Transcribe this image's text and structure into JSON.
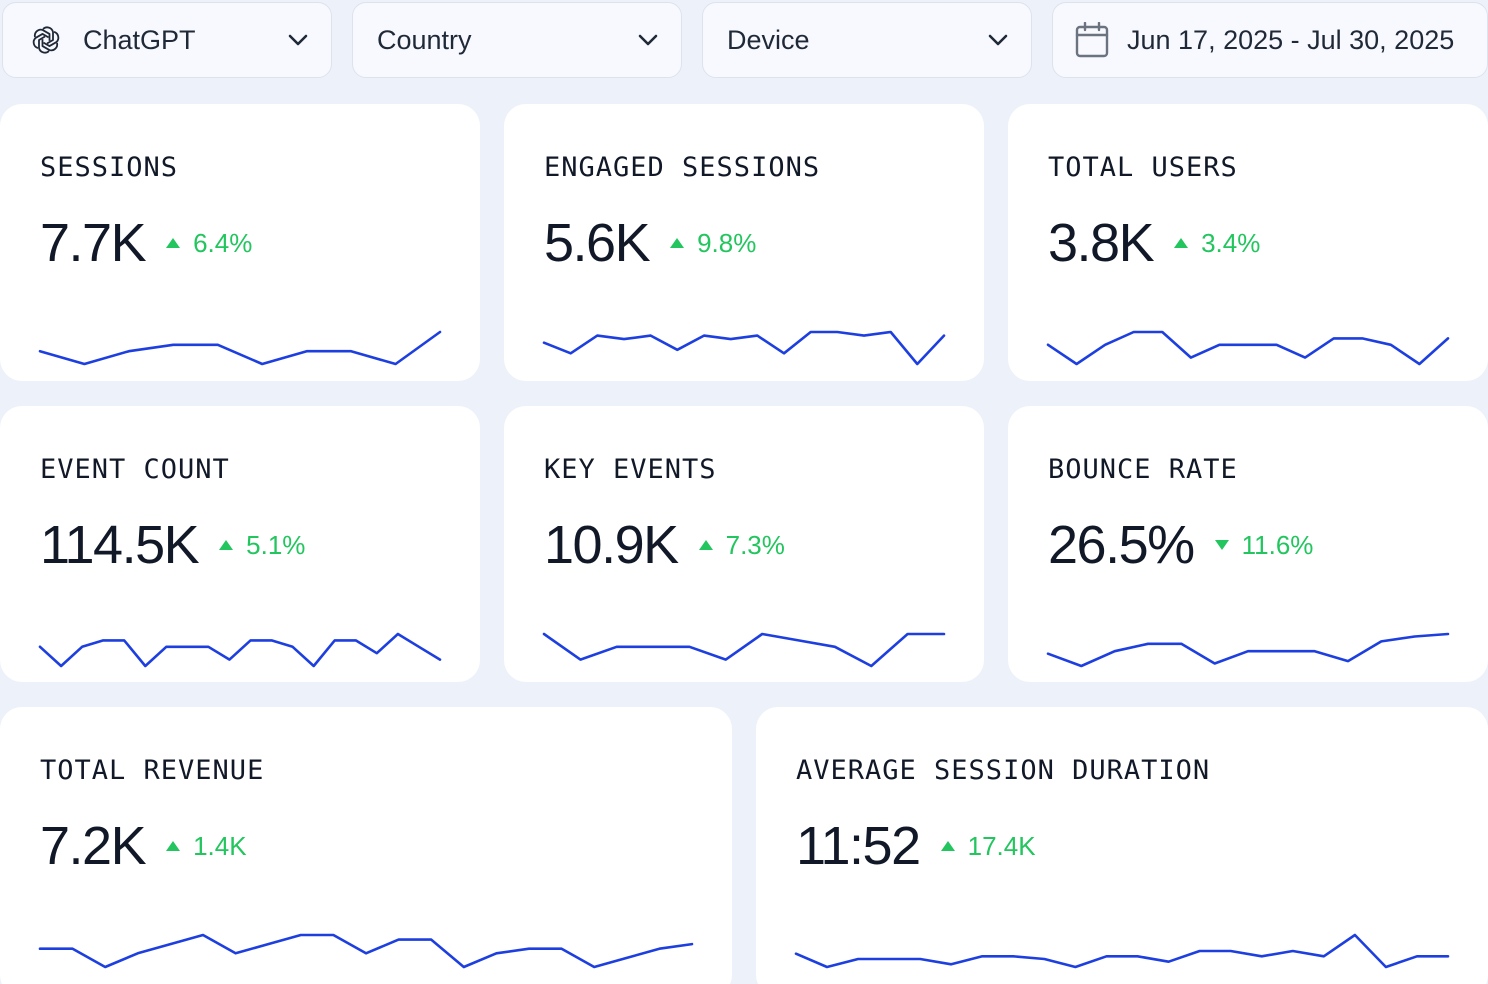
{
  "filters": {
    "source": {
      "label": "ChatGPT",
      "icon": "chatgpt-logo-icon"
    },
    "country": {
      "label": "Country"
    },
    "device": {
      "label": "Device"
    },
    "date_range": {
      "label": "Jun 17, 2025 - Jul 30, 2025",
      "icon": "calendar-icon"
    }
  },
  "colors": {
    "accent_line": "#1d3fe0",
    "positive": "#22c55e",
    "card_bg": "#ffffff",
    "page_bg": "#edf1f9"
  },
  "metrics": [
    {
      "id": "sessions",
      "title": "SESSIONS",
      "value": "7.7K",
      "delta": "6.4%",
      "direction": "up",
      "trend": [
        7.8,
        7.6,
        7.8,
        7.9,
        7.9,
        7.6,
        7.8,
        7.8,
        7.6,
        8.1
      ]
    },
    {
      "id": "engaged-sessions",
      "title": "ENGAGED SESSIONS",
      "value": "5.6K",
      "delta": "9.8%",
      "direction": "up",
      "trend": [
        5.9,
        5.6,
        6.1,
        6.0,
        6.1,
        5.7,
        6.1,
        6.0,
        6.1,
        5.6,
        6.2,
        6.2,
        6.1,
        6.2,
        5.3,
        6.1
      ]
    },
    {
      "id": "total-users",
      "title": "TOTAL USERS",
      "value": "3.8K",
      "delta": "3.4%",
      "direction": "up",
      "trend": [
        3.9,
        3.6,
        3.9,
        4.1,
        4.1,
        3.7,
        3.9,
        3.9,
        3.9,
        3.7,
        4.0,
        4.0,
        3.9,
        3.6,
        4.0
      ]
    },
    {
      "id": "event-count",
      "title": "EVENT COUNT",
      "value": "114.5K",
      "delta": "5.1%",
      "direction": "up",
      "trend": [
        115,
        112,
        115,
        116,
        116,
        112,
        115,
        115,
        115,
        113,
        116,
        116,
        115,
        112,
        116,
        116,
        114,
        117,
        115,
        113
      ]
    },
    {
      "id": "key-events",
      "title": "KEY EVENTS",
      "value": "10.9K",
      "delta": "7.3%",
      "direction": "up",
      "trend": [
        11.0,
        10.6,
        10.8,
        10.8,
        10.8,
        10.6,
        11.0,
        10.9,
        10.8,
        10.5,
        11.0,
        11.0
      ]
    },
    {
      "id": "bounce-rate",
      "title": "BOUNCE RATE",
      "value": "26.5%",
      "delta": "11.6%",
      "direction": "down",
      "trend": [
        26.2,
        25.7,
        26.3,
        26.6,
        26.6,
        25.8,
        26.3,
        26.3,
        26.3,
        25.9,
        26.7,
        26.9,
        27.0
      ]
    },
    {
      "id": "total-revenue",
      "title": "TOTAL REVENUE",
      "value": "7.2K",
      "delta": "1.4K",
      "direction": "up",
      "trend": [
        7.3,
        7.3,
        6.9,
        7.2,
        7.4,
        7.6,
        7.2,
        7.4,
        7.6,
        7.6,
        7.2,
        7.5,
        7.5,
        6.9,
        7.2,
        7.3,
        7.3,
        6.9,
        7.1,
        7.3,
        7.4
      ]
    },
    {
      "id": "average-session-duration",
      "title": "AVERAGE SESSION DURATION",
      "value": "11:52",
      "delta": "17.4K",
      "direction": "up",
      "trend": [
        11.5,
        11.0,
        11.3,
        11.3,
        11.3,
        11.1,
        11.4,
        11.4,
        11.3,
        11.0,
        11.4,
        11.4,
        11.2,
        11.6,
        11.6,
        11.4,
        11.6,
        11.4,
        12.2,
        11.0,
        11.4,
        11.4
      ]
    }
  ]
}
